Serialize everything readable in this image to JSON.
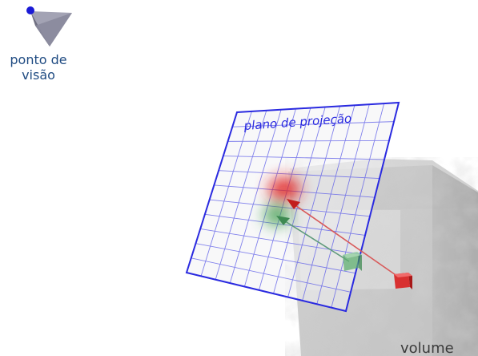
{
  "labels": {
    "viewpoint": [
      "ponto de",
      "visão"
    ],
    "projection_plane": "plano de projeção",
    "volume": "volume"
  },
  "colors": {
    "viewpoint_dot": "#1a1ad6",
    "plane_grid": "#2a2ae0",
    "red_sample": "#d82020",
    "green_sample": "#3e9a52",
    "red_ray": "#d85a5a",
    "green_ray": "#5e9a7a",
    "label_text": "#1f4b82",
    "volume_label_text": "#3a3a3a"
  }
}
